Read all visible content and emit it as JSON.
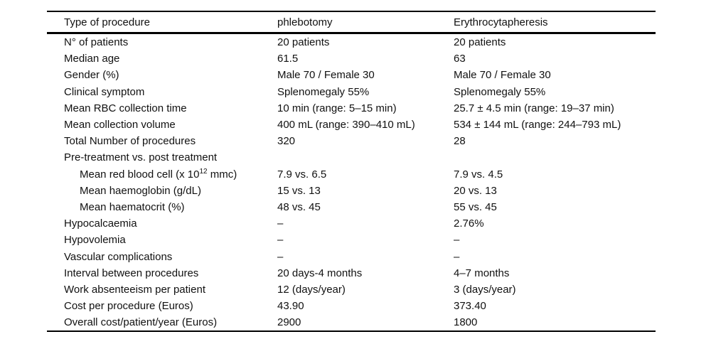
{
  "colors": {
    "text": "#111111",
    "background": "#ffffff",
    "rule": "#000000"
  },
  "table": {
    "header": {
      "col1": "Type of procedure",
      "col2": "phlebotomy",
      "col3": "Erythrocytapheresis"
    },
    "rows": [
      {
        "label": "N° of patients",
        "phlebotomy": "20 patients",
        "erythrocytapheresis": "20 patients"
      },
      {
        "label": "Median age",
        "phlebotomy": "61.5",
        "erythrocytapheresis": "63"
      },
      {
        "label": "Gender (%)",
        "phlebotomy": "Male 70 / Female 30",
        "erythrocytapheresis": "Male 70 / Female 30"
      },
      {
        "label": "Clinical symptom",
        "phlebotomy": "Splenomegaly 55%",
        "erythrocytapheresis": "Splenomegaly 55%"
      },
      {
        "label": "Mean RBC collection time",
        "phlebotomy": "10 min (range: 5–15 min)",
        "erythrocytapheresis": "25.7 ± 4.5 min (range: 19–37 min)"
      },
      {
        "label": "Mean collection volume",
        "phlebotomy": "400 mL (range: 390–410 mL)",
        "erythrocytapheresis": "534 ± 144 mL (range: 244–793 mL)"
      },
      {
        "label": "Total Number of procedures",
        "phlebotomy": "320",
        "erythrocytapheresis": "28"
      },
      {
        "label": "Pre-treatment vs. post treatment",
        "phlebotomy": "",
        "erythrocytapheresis": ""
      },
      {
        "label_prefix": "Mean red blood cell (x 10",
        "label_sup": "12",
        "label_suffix": " mmc)",
        "phlebotomy": "7.9 vs. 6.5",
        "erythrocytapheresis": "7.9 vs. 4.5"
      },
      {
        "label": "Mean haemoglobin (g/dL)",
        "phlebotomy": "15 vs. 13",
        "erythrocytapheresis": "20 vs. 13"
      },
      {
        "label": "Mean haematocrit (%)",
        "phlebotomy": "48 vs. 45",
        "erythrocytapheresis": "55 vs. 45"
      },
      {
        "label": "Hypocalcaemia",
        "phlebotomy": "–",
        "erythrocytapheresis": "2.76%"
      },
      {
        "label": "Hypovolemia",
        "phlebotomy": "–",
        "erythrocytapheresis": "–"
      },
      {
        "label": "Vascular complications",
        "phlebotomy": "–",
        "erythrocytapheresis": "–"
      },
      {
        "label": "Interval between procedures",
        "phlebotomy": "20 days-4 months",
        "erythrocytapheresis": "4–7 months"
      },
      {
        "label": "Work absenteeism per patient",
        "phlebotomy": "12 (days/year)",
        "erythrocytapheresis": "3 (days/year)"
      },
      {
        "label": "Cost per procedure (Euros)",
        "phlebotomy": "43.90",
        "erythrocytapheresis": "373.40"
      },
      {
        "label": "Overall cost/patient/year (Euros)",
        "phlebotomy": "2900",
        "erythrocytapheresis": "1800"
      }
    ]
  }
}
